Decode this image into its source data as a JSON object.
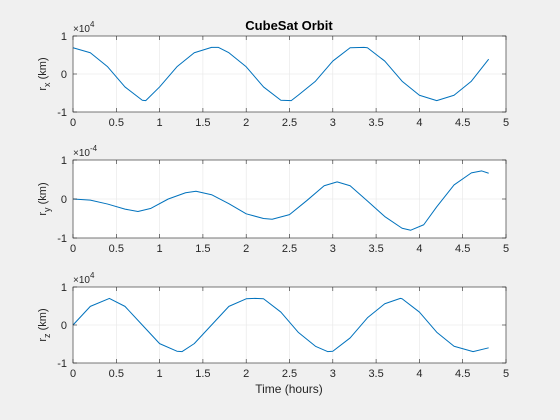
{
  "figure": {
    "title": "CubeSat Orbit",
    "xlabel": "Time (hours)"
  },
  "colors": {
    "background": "#f0f0f0",
    "axes_bg": "#ffffff",
    "line": "#0072bd",
    "axis": "#262626",
    "grid": "#e6e6e6"
  },
  "chart_data": [
    {
      "type": "line",
      "ylabel_main": "r",
      "ylabel_sub": "x",
      "ylabel_unit": " (km)",
      "exponent_base": "×10",
      "exponent_power": "4",
      "grid": true,
      "xlim": [
        0,
        5
      ],
      "ylim": [
        -1,
        1
      ],
      "xticks": [
        "0",
        "0.5",
        "1",
        "1.5",
        "2",
        "2.5",
        "3",
        "3.5",
        "4",
        "4.5",
        "5"
      ],
      "yticks": [
        "-1",
        "0",
        "1"
      ],
      "x": [
        0,
        0.2,
        0.4,
        0.6,
        0.8,
        0.84,
        1.0,
        1.2,
        1.4,
        1.6,
        1.68,
        1.8,
        2.0,
        2.2,
        2.4,
        2.52,
        2.6,
        2.8,
        3.0,
        3.2,
        3.36,
        3.4,
        3.6,
        3.8,
        4.0,
        4.2,
        4.4,
        4.6,
        4.8
      ],
      "y": [
        0.69,
        0.56,
        0.19,
        -0.34,
        -0.69,
        -0.7,
        -0.34,
        0.19,
        0.56,
        0.7,
        0.7,
        0.56,
        0.19,
        -0.34,
        -0.69,
        -0.7,
        -0.56,
        -0.19,
        0.34,
        0.69,
        0.7,
        0.69,
        0.34,
        -0.19,
        -0.56,
        -0.7,
        -0.56,
        -0.19,
        0.39
      ]
    },
    {
      "type": "line",
      "ylabel_main": "r",
      "ylabel_sub": "y",
      "ylabel_unit": " (km)",
      "exponent_base": "×10",
      "exponent_power": "-4",
      "grid": true,
      "xlim": [
        0,
        5
      ],
      "ylim": [
        -1,
        1
      ],
      "xticks": [
        "0",
        "0.5",
        "1",
        "1.5",
        "2",
        "2.5",
        "3",
        "3.5",
        "4",
        "4.5",
        "5"
      ],
      "yticks": [
        "-1",
        "0",
        "1"
      ],
      "x": [
        0,
        0.2,
        0.4,
        0.6,
        0.75,
        0.9,
        1.1,
        1.3,
        1.42,
        1.6,
        1.8,
        2.0,
        2.2,
        2.3,
        2.5,
        2.7,
        2.9,
        3.05,
        3.2,
        3.4,
        3.6,
        3.8,
        3.9,
        4.05,
        4.2,
        4.4,
        4.6,
        4.72,
        4.8
      ],
      "y": [
        0.0,
        -0.03,
        -0.13,
        -0.26,
        -0.32,
        -0.24,
        0.0,
        0.16,
        0.2,
        0.11,
        -0.12,
        -0.38,
        -0.5,
        -0.52,
        -0.4,
        -0.04,
        0.34,
        0.44,
        0.34,
        -0.05,
        -0.45,
        -0.75,
        -0.8,
        -0.66,
        -0.2,
        0.36,
        0.67,
        0.72,
        0.66
      ]
    },
    {
      "type": "line",
      "ylabel_main": "r",
      "ylabel_sub": "z",
      "ylabel_unit": " (km)",
      "exponent_base": "×10",
      "exponent_power": "4",
      "grid": true,
      "xlim": [
        0,
        5
      ],
      "ylim": [
        -1,
        1
      ],
      "xticks": [
        "0",
        "0.5",
        "1",
        "1.5",
        "2",
        "2.5",
        "3",
        "3.5",
        "4",
        "4.5",
        "5"
      ],
      "yticks": [
        "-1",
        "0",
        "1"
      ],
      "x": [
        0,
        0.2,
        0.42,
        0.6,
        0.8,
        1.0,
        1.2,
        1.26,
        1.4,
        1.6,
        1.8,
        2.0,
        2.1,
        2.2,
        2.4,
        2.6,
        2.8,
        2.94,
        3.0,
        3.2,
        3.4,
        3.6,
        3.78,
        3.8,
        4.0,
        4.2,
        4.4,
        4.62,
        4.8
      ],
      "y": [
        0.0,
        0.49,
        0.7,
        0.49,
        0.0,
        -0.49,
        -0.69,
        -0.7,
        -0.49,
        0.0,
        0.49,
        0.69,
        0.7,
        0.69,
        0.34,
        -0.19,
        -0.56,
        -0.7,
        -0.69,
        -0.34,
        0.19,
        0.56,
        0.7,
        0.69,
        0.34,
        -0.19,
        -0.56,
        -0.7,
        -0.6
      ]
    }
  ]
}
